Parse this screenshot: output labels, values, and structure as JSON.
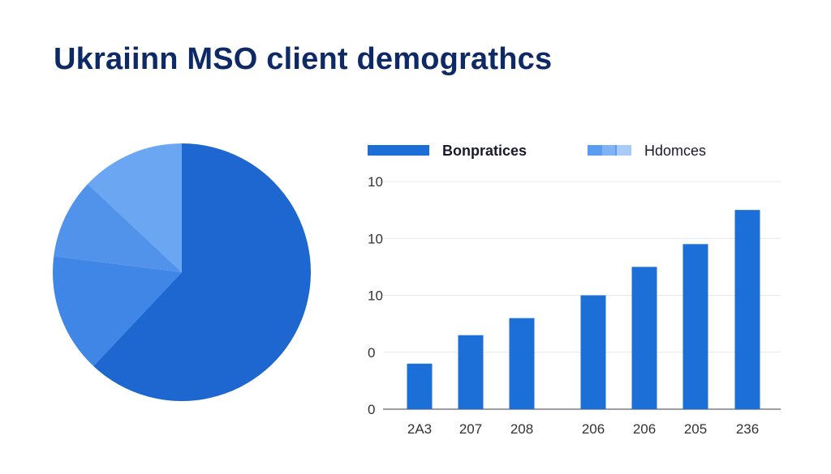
{
  "title": "Ukraiinn MSO client demograthcs",
  "colors": {
    "title": "#0d2a66",
    "bar": "#1c6fd6",
    "pie": [
      "#1e66d0",
      "#3f86e6",
      "#5192ea",
      "#6aa6f2"
    ]
  },
  "chart_data": [
    {
      "type": "pie",
      "slices": [
        {
          "value": 62,
          "color": "#1e66d0"
        },
        {
          "value": 15,
          "color": "#3f86e6"
        },
        {
          "value": 10,
          "color": "#5192ea"
        },
        {
          "value": 13,
          "color": "#6aa6f2"
        }
      ]
    },
    {
      "type": "bar",
      "legend": [
        {
          "label": "Bonpratices",
          "color": "#1c6fd6",
          "bold": true
        },
        {
          "label": "Hdomces",
          "color": "#5a9cf0",
          "bold": false
        }
      ],
      "legend_position": "top",
      "yticks": [
        "0",
        "0",
        "10",
        "10",
        "10"
      ],
      "ylim": [
        0,
        4
      ],
      "categories": [
        "2A3",
        "207",
        "208",
        "",
        "206",
        "206",
        "205",
        "236"
      ],
      "values": [
        0.8,
        1.3,
        1.6,
        0,
        2.0,
        2.5,
        2.9,
        3.5
      ],
      "grid": true
    }
  ]
}
